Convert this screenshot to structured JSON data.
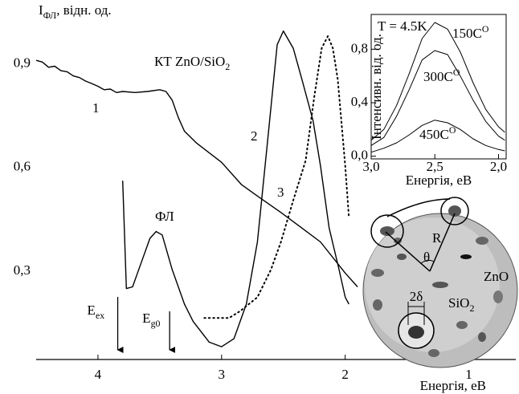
{
  "chart_data": [
    {
      "type": "line",
      "ylabel": "I",
      "ylabel_sub": "ФЛ",
      "ylabel_rest": ", відн. од.",
      "xlabel": "Енергія, еВ",
      "xlim": [
        4.5,
        0.62
      ],
      "ylim": [
        0.04,
        1.04
      ],
      "xticks": [
        4,
        3,
        2,
        1
      ],
      "yticks": [
        {
          "value": 0.9,
          "label": "0,9"
        },
        {
          "value": 0.6,
          "label": "0,6"
        },
        {
          "value": 0.3,
          "label": "0,3"
        }
      ],
      "series": [
        {
          "name": "1",
          "color": "#000",
          "dash": "solid",
          "x": [
            4.5,
            4.45,
            4.4,
            4.35,
            4.3,
            4.25,
            4.2,
            4.15,
            4.1,
            4.05,
            4.0,
            3.95,
            3.9,
            3.85,
            3.8,
            3.7,
            3.6,
            3.5,
            3.45,
            3.4,
            3.35,
            3.3,
            3.2,
            3.0,
            2.84,
            2.7,
            2.52,
            2.35,
            2.2,
            2.0,
            1.9
          ],
          "values": [
            0.905,
            0.9,
            0.885,
            0.888,
            0.875,
            0.872,
            0.86,
            0.855,
            0.845,
            0.838,
            0.83,
            0.82,
            0.822,
            0.812,
            0.815,
            0.812,
            0.815,
            0.82,
            0.815,
            0.79,
            0.74,
            0.7,
            0.665,
            0.61,
            0.546,
            0.51,
            0.465,
            0.42,
            0.38,
            0.29,
            0.25
          ]
        },
        {
          "name": "2",
          "color": "#000",
          "dash": "solid",
          "x": [
            3.8,
            3.77,
            3.72,
            3.65,
            3.58,
            3.53,
            3.48,
            3.4,
            3.3,
            3.23,
            3.1,
            3.0,
            2.9,
            2.8,
            2.71,
            2.62,
            2.55,
            2.5,
            2.42,
            2.35,
            2.26,
            2.2,
            2.13,
            2.05,
            2.0,
            1.97
          ],
          "values": [
            0.557,
            0.245,
            0.25,
            0.32,
            0.39,
            0.41,
            0.4,
            0.3,
            0.2,
            0.15,
            0.09,
            0.077,
            0.1,
            0.2,
            0.38,
            0.7,
            0.95,
            0.99,
            0.94,
            0.85,
            0.73,
            0.6,
            0.42,
            0.3,
            0.22,
            0.2
          ]
        },
        {
          "name": "3",
          "color": "#000",
          "dash": "dotted",
          "x": [
            3.14,
            2.94,
            2.85,
            2.71,
            2.6,
            2.52,
            2.42,
            2.32,
            2.25,
            2.19,
            2.14,
            2.1,
            2.06,
            2.0,
            1.97
          ],
          "values": [
            0.16,
            0.16,
            0.18,
            0.22,
            0.3,
            0.38,
            0.5,
            0.615,
            0.8,
            0.94,
            0.975,
            0.94,
            0.85,
            0.6,
            0.45
          ]
        }
      ],
      "annotations": [
        {
          "text": "КТ ZnO/SiO",
          "sub": "2"
        },
        {
          "text": "ФЛ"
        }
      ],
      "markers": [
        {
          "text": "E",
          "sub": "ex",
          "x": 3.84
        },
        {
          "text": "E",
          "sub": "g0",
          "x": 3.42
        }
      ]
    },
    {
      "type": "line",
      "ylabel": "Інтенсивн. від. од.",
      "xlabel": "Енергія, еВ",
      "note": "T = 4.5K",
      "xlim": [
        3.0,
        1.94
      ],
      "ylim": [
        -0.02,
        1.06
      ],
      "xticks": [
        {
          "value": 3.0,
          "label": "3,0"
        },
        {
          "value": 2.5,
          "label": "2,5"
        },
        {
          "value": 2.0,
          "label": "2,0"
        }
      ],
      "yticks": [
        {
          "value": 0.0,
          "label": "0,0"
        },
        {
          "value": 0.4,
          "label": "0,4"
        },
        {
          "value": 0.8,
          "label": "0,8"
        }
      ],
      "series": [
        {
          "name": "150C",
          "name_sup": "O",
          "color": "#000",
          "dash": "solid",
          "x": [
            3.0,
            2.9,
            2.8,
            2.7,
            2.6,
            2.5,
            2.4,
            2.3,
            2.2,
            2.1,
            2.0,
            1.95
          ],
          "values": [
            0.12,
            0.2,
            0.38,
            0.62,
            0.88,
            1.0,
            0.95,
            0.78,
            0.55,
            0.35,
            0.22,
            0.18
          ]
        },
        {
          "name": "300C",
          "name_sup": "O",
          "color": "#000",
          "dash": "solid",
          "x": [
            3.0,
            2.9,
            2.8,
            2.7,
            2.6,
            2.5,
            2.4,
            2.3,
            2.2,
            2.1,
            2.0,
            1.95
          ],
          "values": [
            0.08,
            0.14,
            0.3,
            0.5,
            0.72,
            0.79,
            0.76,
            0.6,
            0.42,
            0.26,
            0.15,
            0.12
          ]
        },
        {
          "name": "450C",
          "name_sup": "O",
          "color": "#000",
          "dash": "solid",
          "x": [
            3.0,
            2.9,
            2.8,
            2.7,
            2.6,
            2.5,
            2.4,
            2.3,
            2.2,
            2.1,
            2.0,
            1.95
          ],
          "values": [
            0.03,
            0.06,
            0.1,
            0.16,
            0.23,
            0.27,
            0.25,
            0.2,
            0.13,
            0.08,
            0.05,
            0.04
          ]
        }
      ]
    }
  ],
  "diagram": {
    "radius": "R",
    "angle": "θ",
    "size": "2δ",
    "zno": "ZnO",
    "sio": "SiO",
    "sio_sub": "2"
  }
}
